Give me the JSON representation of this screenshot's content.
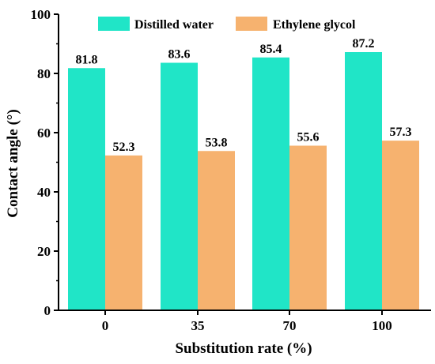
{
  "chart_data": {
    "type": "bar",
    "categories": [
      "0",
      "35",
      "70",
      "100"
    ],
    "series": [
      {
        "name": "Distilled water",
        "values": [
          81.8,
          83.6,
          85.4,
          87.2
        ],
        "color": "#20E5C7"
      },
      {
        "name": "Ethylene glycol",
        "values": [
          52.3,
          53.8,
          55.6,
          57.3
        ],
        "color": "#F6B26F"
      }
    ],
    "data_labels": {
      "Distilled water": [
        "81.8",
        "83.6",
        "85.4",
        "87.2"
      ],
      "Ethylene glycol": [
        "52.3",
        "53.8",
        "55.6",
        "57.3"
      ]
    },
    "xlabel": "Substitution rate (%)",
    "ylabel": "Contact angle (°)",
    "ylim": [
      0,
      100
    ],
    "yticks": [
      "0",
      "20",
      "40",
      "60",
      "80",
      "100"
    ],
    "grid": false,
    "legend_position": "top"
  }
}
